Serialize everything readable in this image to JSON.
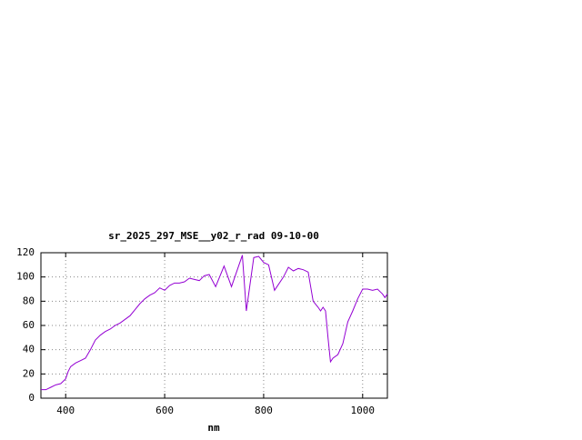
{
  "chart_data": {
    "type": "line",
    "title": "sr_2025_297_MSE__y02_r_rad 09-10-00",
    "x_label": "nm",
    "x": [
      350,
      360,
      370,
      380,
      390,
      400,
      405,
      410,
      420,
      430,
      440,
      450,
      460,
      470,
      480,
      490,
      500,
      510,
      520,
      530,
      540,
      550,
      560,
      570,
      580,
      590,
      600,
      610,
      620,
      630,
      640,
      650,
      660,
      670,
      680,
      690,
      703,
      720,
      735,
      757,
      765,
      780,
      790,
      800,
      810,
      822,
      840,
      850,
      860,
      870,
      880,
      890,
      900,
      910,
      915,
      920,
      925,
      930,
      935,
      940,
      950,
      960,
      970,
      980,
      990,
      1000,
      1010,
      1020,
      1030,
      1040,
      1045,
      1050
    ],
    "series": [
      {
        "name": "sr_2025_297_MSE__y02_r_rad",
        "color": "#9400d3",
        "values": [
          7,
          7,
          9,
          11,
          12,
          16,
          22,
          26,
          29,
          31,
          33,
          40,
          48,
          52,
          55,
          57,
          60,
          62,
          65,
          68,
          73,
          78,
          82,
          85,
          87,
          91,
          89,
          93,
          95,
          95,
          96,
          99,
          98,
          97,
          101,
          102,
          92,
          109,
          92,
          118,
          72,
          116,
          117,
          112,
          110,
          89,
          100,
          108,
          105,
          107,
          106,
          104,
          80,
          75,
          72,
          75,
          72,
          50,
          30,
          33,
          36,
          45,
          63,
          72,
          82,
          90,
          90,
          89,
          90,
          86,
          83,
          86
        ]
      }
    ],
    "xlim": [
      350,
      1050
    ],
    "ylim": [
      0,
      120
    ],
    "xticks": [
      400,
      600,
      800,
      1000
    ],
    "yticks": [
      0,
      20,
      40,
      60,
      80,
      100,
      120
    ],
    "grid": true
  }
}
